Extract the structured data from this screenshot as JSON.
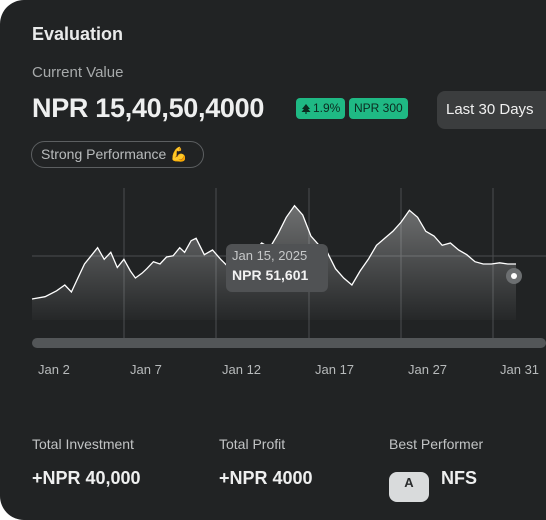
{
  "header": {
    "title": "Evaluation",
    "subtitle": "Current Value",
    "value": "NPR 15,40,50,4000",
    "change_pct": "1.9%",
    "change_amt": "NPR 300",
    "range_button": "Last 30 Days",
    "performance_pill": "Strong Performance 💪"
  },
  "tooltip": {
    "date": "Jan 15, 2025",
    "value": "NPR 51,601"
  },
  "stats": {
    "investment_label": "Total Investment",
    "investment_value": "+NPR 40,000",
    "profit_label": "Total Profit",
    "profit_value": "+NPR 4000",
    "best_label": "Best Performer",
    "best_value": "NFS",
    "best_icon": "A"
  },
  "colors": {
    "card_bg": "#212324",
    "accent_green": "#1fb984"
  },
  "chart_data": {
    "type": "area",
    "x_labels": [
      "Jan 2",
      "Jan 7",
      "Jan 12",
      "Jan 17",
      "Jan 27",
      "Jan 31"
    ],
    "grid": true,
    "x": [
      0,
      0.8,
      1.5,
      2.0,
      2.4,
      2.8,
      3.2,
      3.6,
      4.0,
      4.4,
      4.8,
      5.2,
      5.6,
      6.0,
      6.3,
      6.7,
      7.0,
      7.4,
      7.8,
      8.2,
      8.6,
      9.0,
      9.3,
      9.7,
      10.0,
      10.5,
      11.0,
      11.5,
      12.0,
      12.5,
      13.0,
      13.5,
      14.0,
      14.5,
      15.0,
      15.5,
      16.0,
      16.5,
      17.0,
      17.5,
      18.0,
      18.5,
      19.0,
      19.5,
      20.0,
      20.5,
      21.0,
      21.5,
      22.0,
      22.5,
      23.0,
      23.5,
      24.0,
      24.5,
      25.0,
      25.5,
      26.0,
      26.5,
      27.0,
      27.5,
      28.0,
      28.5,
      29.0,
      29.5
    ],
    "values": [
      18,
      20,
      25,
      30,
      24,
      36,
      48,
      55,
      62,
      52,
      58,
      45,
      52,
      42,
      36,
      40,
      44,
      50,
      48,
      54,
      55,
      62,
      58,
      68,
      70,
      56,
      60,
      52,
      45,
      38,
      48,
      58,
      66,
      62,
      74,
      88,
      98,
      90,
      72,
      64,
      58,
      44,
      36,
      30,
      42,
      52,
      64,
      70,
      76,
      84,
      94,
      88,
      76,
      72,
      64,
      66,
      60,
      56,
      50,
      48,
      48,
      49,
      48,
      48
    ],
    "ylim": [
      0,
      120
    ]
  }
}
